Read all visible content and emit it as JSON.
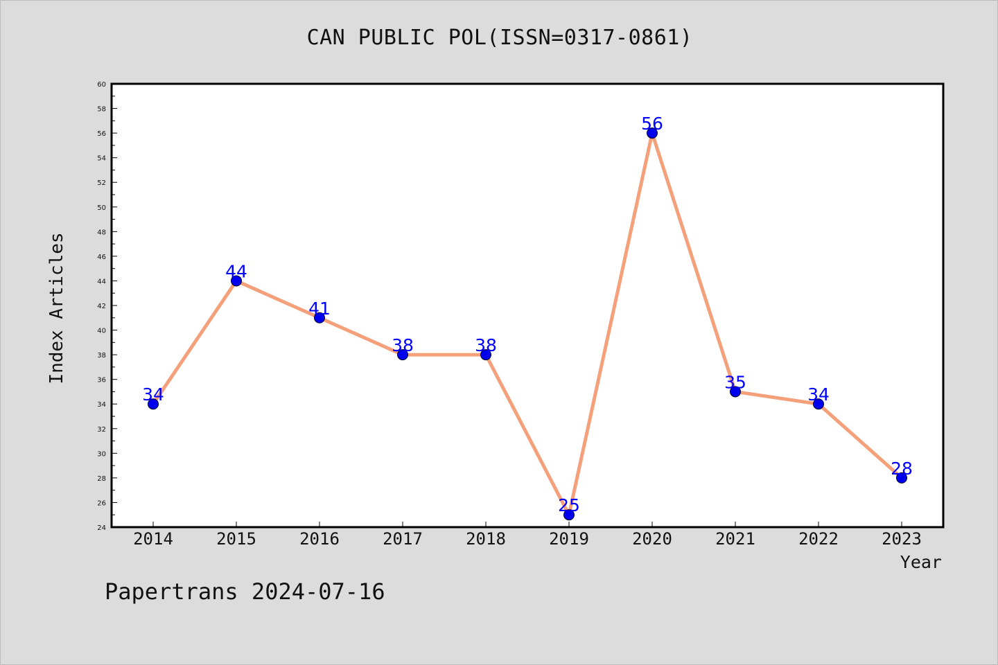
{
  "chart_data": {
    "type": "line",
    "title": "CAN PUBLIC POL(ISSN=0317-0861)",
    "xlabel": "Year",
    "ylabel": "Index Articles",
    "categories": [
      "2014",
      "2015",
      "2016",
      "2017",
      "2018",
      "2019",
      "2020",
      "2021",
      "2022",
      "2023"
    ],
    "series": [
      {
        "values": [
          34,
          44,
          41,
          38,
          38,
          25,
          56,
          35,
          34,
          28
        ]
      }
    ],
    "ylim": [
      24,
      60
    ],
    "y_ticks": [
      24,
      26,
      28,
      30,
      32,
      34,
      36,
      38,
      40,
      42,
      44,
      46,
      48,
      50,
      52,
      54,
      56,
      58,
      60
    ],
    "grid": false,
    "legend": "none",
    "colors": {
      "line": "#f4a07a",
      "marker": "#0000ee",
      "data_label": "#0000ff",
      "plot_background": "#ffffff",
      "page_background": "#dcdcdc"
    }
  },
  "footer": "Papertrans 2024-07-16"
}
